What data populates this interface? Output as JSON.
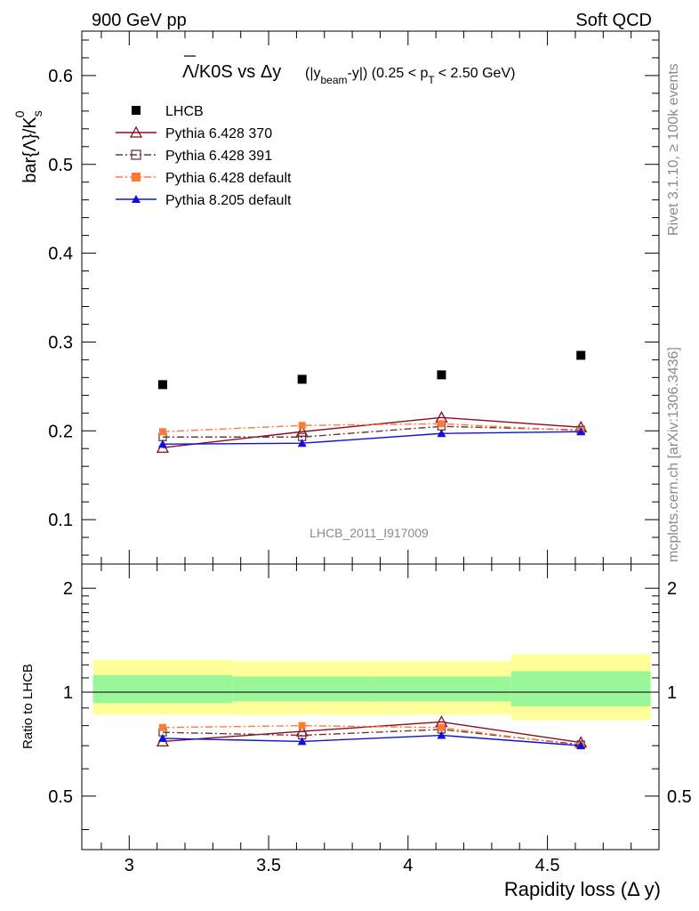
{
  "header": {
    "left": "900 GeV pp",
    "right": "Soft QCD"
  },
  "side_labels": {
    "rivet": "Rivet 3.1.10, ≥ 100k events",
    "mcplots": "mcplots.cern.ch [arXiv:1306.3436]"
  },
  "chart_data": [
    {
      "type": "scatter",
      "title_main": "Λ/K0S vs Δy",
      "title_cut_a": "(|y",
      "title_cut_sub1": "beam",
      "title_cut_b": "-y|) (0.25 < p",
      "title_cut_sub2": "T",
      "title_cut_c": "< 2.50 GeV)",
      "ylabel": "bar{Λ}/K",
      "ylabel_sub": "s",
      "ylabel_sup": "0",
      "watermark": "LHCB_2011_I917009",
      "xlim": [
        2.83,
        4.9
      ],
      "ylim": [
        0.05,
        0.65
      ],
      "yticks": [
        "0.1",
        "0.2",
        "0.3",
        "0.4",
        "0.5",
        "0.6"
      ],
      "x": [
        3.12,
        3.62,
        4.12,
        4.62
      ],
      "series": [
        {
          "name": "LHCB",
          "color": "#000000",
          "marker": "filled-square",
          "line": "none",
          "values": [
            0.252,
            0.258,
            0.263,
            0.285
          ]
        },
        {
          "name": "Pythia 6.428 370",
          "color": "#8b0a1e",
          "marker": "open-triangle",
          "line": "solid",
          "values": [
            0.181,
            0.199,
            0.215,
            0.204
          ]
        },
        {
          "name": "Pythia 6.428 391",
          "color": "#6b3a3a",
          "marker": "open-square",
          "line": "dashdot",
          "values": [
            0.193,
            0.193,
            0.205,
            0.201
          ]
        },
        {
          "name": "Pythia 6.428 default",
          "color": "#ff7a33",
          "marker": "filled-square",
          "line": "dashdot",
          "values": [
            0.199,
            0.206,
            0.208,
            0.2
          ]
        },
        {
          "name": "Pythia 8.205 default",
          "color": "#1010dd",
          "marker": "filled-triangle",
          "line": "solid",
          "values": [
            0.185,
            0.186,
            0.197,
            0.199
          ]
        }
      ]
    },
    {
      "type": "line",
      "ylabel": "Ratio to LHCB",
      "xlabel": "Rapidity loss (Δ y)",
      "ylim": [
        0.35,
        2.35
      ],
      "yticks": [
        "0.5",
        "1",
        "2"
      ],
      "xticks": [
        "3",
        "3.5",
        "4",
        "4.5"
      ],
      "bands": [
        {
          "xmin": 2.87,
          "xmax": 3.37,
          "inner": [
            0.93,
            1.12
          ],
          "outer": [
            0.86,
            1.24
          ]
        },
        {
          "xmin": 3.37,
          "xmax": 3.87,
          "inner": [
            0.94,
            1.11
          ],
          "outer": [
            0.86,
            1.23
          ]
        },
        {
          "xmin": 3.87,
          "xmax": 4.37,
          "inner": [
            0.94,
            1.11
          ],
          "outer": [
            0.86,
            1.23
          ]
        },
        {
          "xmin": 4.37,
          "xmax": 4.87,
          "inner": [
            0.91,
            1.15
          ],
          "outer": [
            0.83,
            1.29
          ]
        }
      ],
      "band_colors": {
        "inner": "#99f799",
        "outer": "#ffff99"
      },
      "x": [
        3.12,
        3.62,
        4.12,
        4.62
      ],
      "series": [
        {
          "name": "Pythia 6.428 370",
          "values": [
            0.72,
            0.77,
            0.82,
            0.715
          ]
        },
        {
          "name": "Pythia 6.428 391",
          "values": [
            0.765,
            0.75,
            0.78,
            0.705
          ]
        },
        {
          "name": "Pythia 6.428 default",
          "values": [
            0.79,
            0.8,
            0.79,
            0.7
          ]
        },
        {
          "name": "Pythia 8.205 default",
          "values": [
            0.735,
            0.72,
            0.75,
            0.7
          ]
        }
      ]
    }
  ]
}
